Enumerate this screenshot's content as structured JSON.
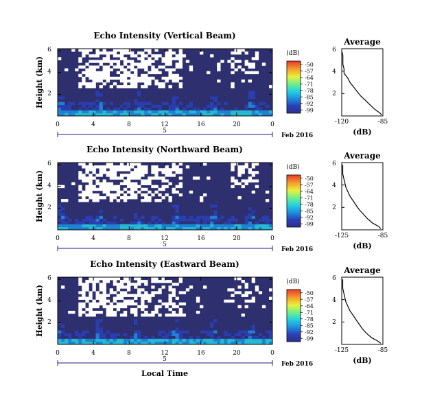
{
  "xlabel": "Local Time",
  "date_label": "Feb 2016",
  "date_day": "5",
  "chart_data": [
    {
      "type": "heatmap",
      "title": "Echo Intensity (Vertical Beam)",
      "ylabel": "Height (km)",
      "x_ticks": [
        "0",
        "4",
        "8",
        "12",
        "16",
        "20",
        "0"
      ],
      "y_ticks": [
        "2",
        "4",
        "6"
      ],
      "xlim": [
        0,
        24
      ],
      "ylim": [
        0,
        6.2
      ],
      "colorbar": {
        "label": "(dB)",
        "ticks": [
          "-50",
          "-57",
          "-64",
          "-71",
          "-78",
          "-85",
          "-92",
          "-99"
        ]
      },
      "profile": {
        "title": "Average",
        "xlabel": "(dB)",
        "x_ticks": [
          "-120",
          "-85"
        ],
        "y_ticks": [
          "2",
          "4",
          "6"
        ],
        "xlim": [
          -120,
          -85
        ],
        "ylim": [
          0,
          6
        ],
        "heights": [
          0.1,
          0.3,
          0.6,
          1.0,
          1.4,
          1.8,
          2.2,
          2.6,
          3.0,
          3.4,
          3.8,
          4.2,
          4.6,
          5.0,
          5.4,
          5.8
        ],
        "values": [
          -86,
          -88,
          -92,
          -96,
          -100,
          -104,
          -107,
          -110,
          -113,
          -115,
          -118,
          -118,
          -119,
          -119,
          -119,
          -120
        ]
      }
    },
    {
      "type": "heatmap",
      "title": "Echo Intensity (Northward Beam)",
      "ylabel": "Height (km)",
      "x_ticks": [
        "0",
        "4",
        "8",
        "12",
        "16",
        "20",
        "0"
      ],
      "y_ticks": [
        "2",
        "4",
        "6"
      ],
      "xlim": [
        0,
        24
      ],
      "ylim": [
        0,
        6.2
      ],
      "colorbar": {
        "label": "(dB)",
        "ticks": [
          "-50",
          "-57",
          "-64",
          "-71",
          "-78",
          "-85",
          "-92",
          "-99"
        ]
      },
      "profile": {
        "title": "Average",
        "xlabel": "(dB)",
        "x_ticks": [
          "-125",
          "-85"
        ],
        "y_ticks": [
          "2",
          "4",
          "6"
        ],
        "xlim": [
          -125,
          -85
        ],
        "ylim": [
          0,
          6
        ],
        "heights": [
          0.1,
          0.3,
          0.6,
          1.0,
          1.4,
          1.8,
          2.2,
          2.6,
          3.0,
          3.4,
          3.8,
          4.2,
          4.6,
          5.0,
          5.4,
          5.8
        ],
        "values": [
          -87,
          -89,
          -95,
          -100,
          -104,
          -108,
          -111,
          -114,
          -117,
          -119,
          -121,
          -122,
          -123,
          -124,
          -124,
          -124
        ]
      }
    },
    {
      "type": "heatmap",
      "title": "Echo Intensity (Eastward Beam)",
      "ylabel": "Height (km)",
      "x_ticks": [
        "0",
        "4",
        "8",
        "12",
        "16",
        "20",
        "0"
      ],
      "y_ticks": [
        "2",
        "4",
        "6"
      ],
      "xlim": [
        0,
        24
      ],
      "ylim": [
        0,
        6.2
      ],
      "colorbar": {
        "label": "(dB)",
        "ticks": [
          "-50",
          "-57",
          "-64",
          "-71",
          "-78",
          "-85",
          "-92",
          "-99"
        ]
      },
      "profile": {
        "title": "Average",
        "xlabel": "(dB)",
        "x_ticks": [
          "-125",
          "-85"
        ],
        "y_ticks": [
          "2",
          "4",
          "6"
        ],
        "xlim": [
          -125,
          -85
        ],
        "ylim": [
          0,
          6
        ],
        "heights": [
          0.1,
          0.3,
          0.6,
          1.0,
          1.4,
          1.8,
          2.2,
          2.6,
          3.0,
          3.4,
          3.8,
          4.2,
          4.6,
          5.0,
          5.4,
          5.8
        ],
        "values": [
          -87,
          -90,
          -96,
          -101,
          -105,
          -108,
          -111,
          -114,
          -117,
          -119,
          -121,
          -122,
          -123,
          -124,
          -124,
          -124
        ]
      }
    }
  ]
}
